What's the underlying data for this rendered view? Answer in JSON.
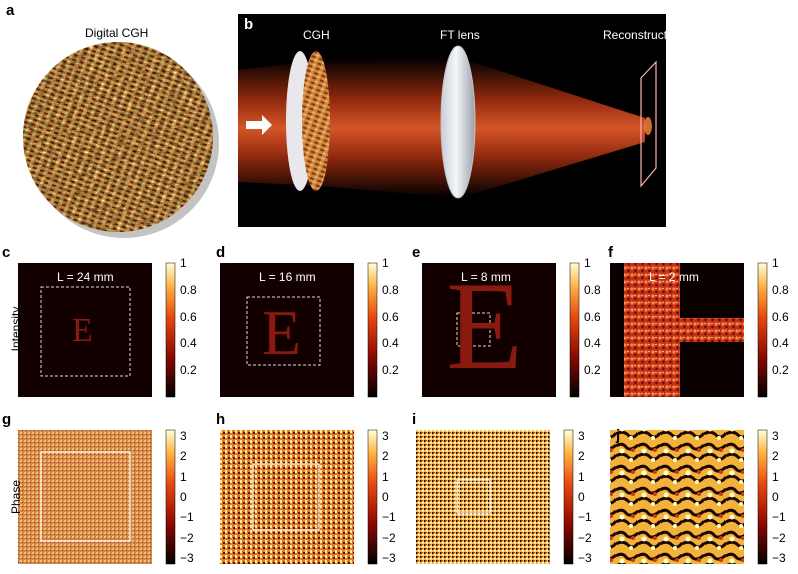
{
  "panel_a": {
    "letter": "a",
    "title": "Digital CGH"
  },
  "panel_b": {
    "letter": "b",
    "labels": {
      "cgh": "CGH",
      "lens": "FT lens",
      "recon": "Reconstructuion"
    }
  },
  "panels_intensity": [
    {
      "letter": "c",
      "caption": "L = 24 mm"
    },
    {
      "letter": "d",
      "caption": "L = 16 mm"
    },
    {
      "letter": "e",
      "caption": "L = 8 mm"
    },
    {
      "letter": "f",
      "caption": "L = 2 mm"
    }
  ],
  "panels_phase": [
    {
      "letter": "g"
    },
    {
      "letter": "h"
    },
    {
      "letter": "i"
    },
    {
      "letter": "j"
    }
  ],
  "row_labels": {
    "intensity": "Intensity",
    "phase": "Phase"
  },
  "colorbar_intensity": {
    "ticks": [
      "1",
      "0.8",
      "0.6",
      "0.4",
      "0.2"
    ]
  },
  "colorbar_phase": {
    "ticks": [
      "3",
      "2",
      "1",
      "0",
      "−1",
      "−2",
      "−3"
    ]
  },
  "letter_glyph": "E",
  "colors": {
    "hot_dark": "#1a0000",
    "hot_mid": "#d84a1a",
    "hot_light": "#ffe680",
    "beam": "#d04a1e"
  }
}
